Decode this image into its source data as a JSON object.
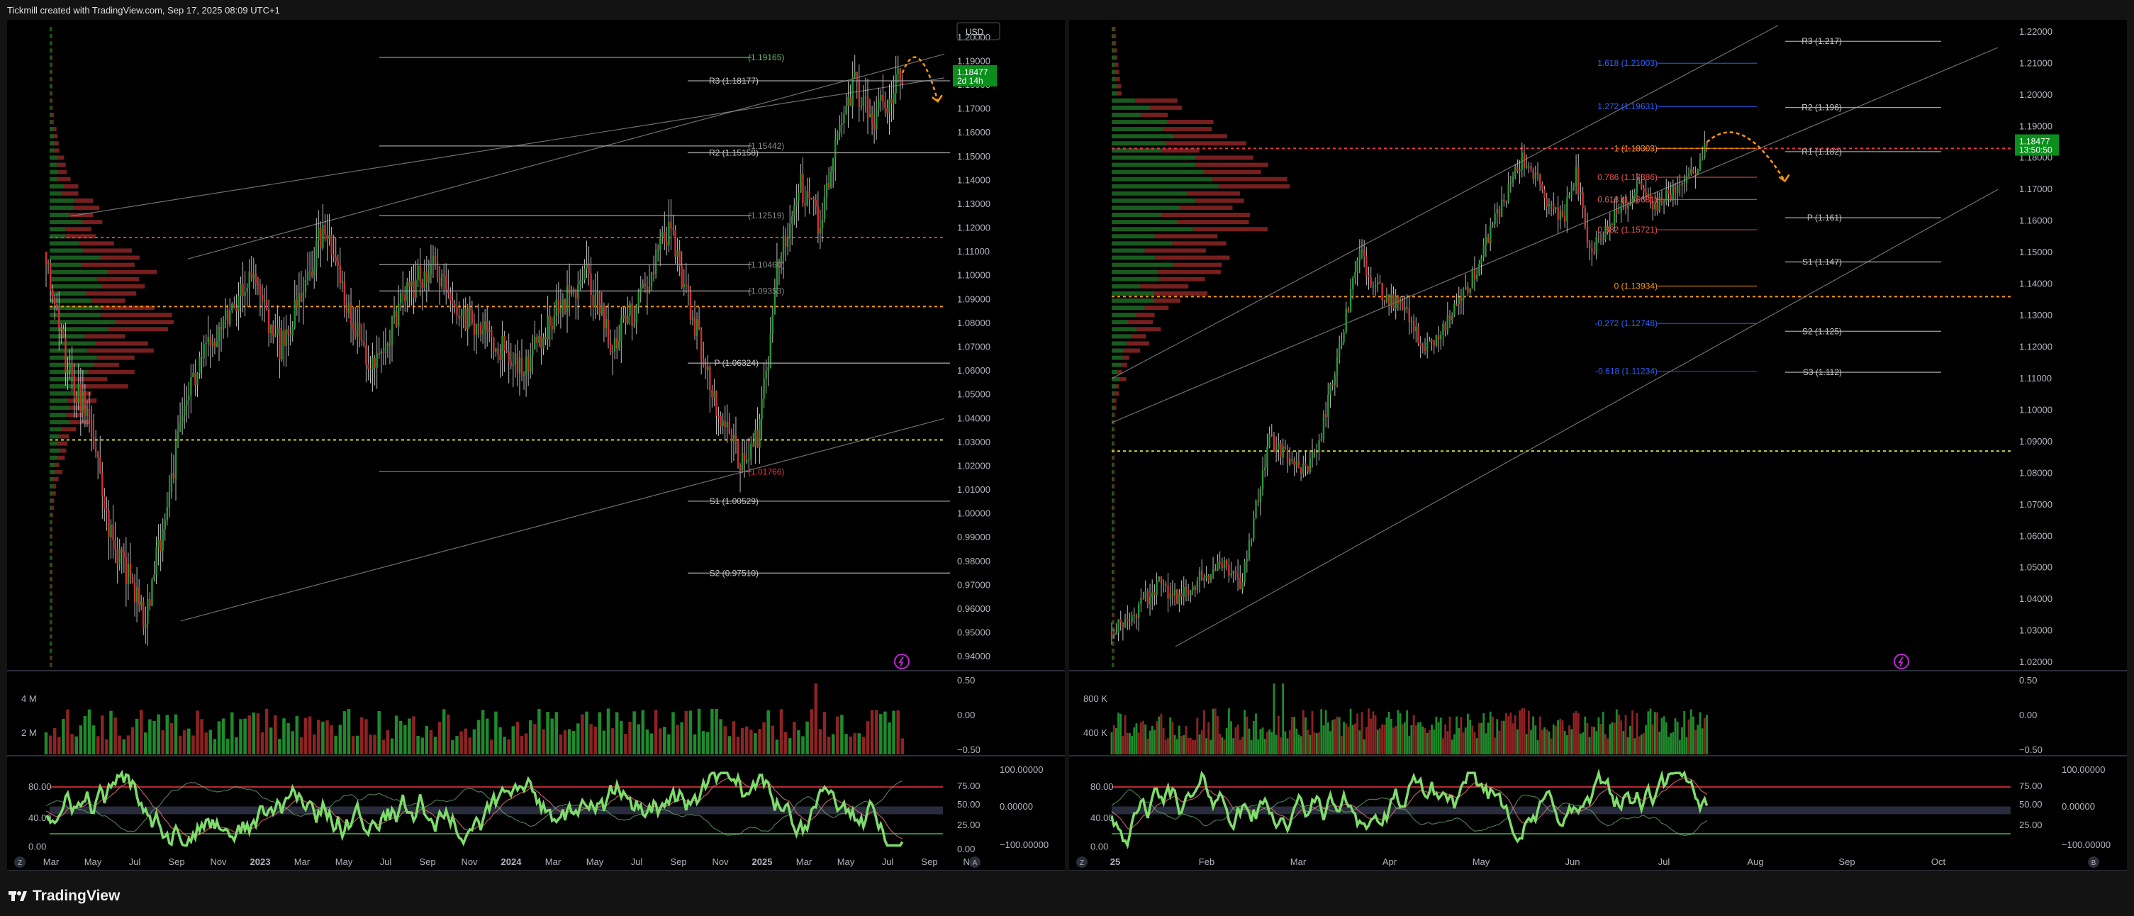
{
  "header": {
    "caption": "Tickmill created with TradingView.com, Sep 17, 2025 08:09 UTC+1"
  },
  "footer": {
    "brand": "TradingView"
  },
  "colors": {
    "bg": "#000000",
    "up": "#1f9a2e",
    "down": "#d32f2f",
    "resistance": "#f23645",
    "support": "#cddc39",
    "poc": "#ff9800",
    "fib": "#2962ff"
  },
  "left_panel": {
    "currency": "USD",
    "price_badge": {
      "price": "1.18477",
      "countdown": "2d 14h"
    },
    "pivots": [
      {
        "label": "R3 (1.18177)",
        "value": 1.18177
      },
      {
        "label": "R2 (1.15158)",
        "value": 1.15158
      },
      {
        "label": "P (1.06324)",
        "value": 1.06324
      },
      {
        "label": "S1 (1.00529)",
        "value": 1.00529
      },
      {
        "label": "S2 (0.97510)",
        "value": 0.9751
      }
    ],
    "levels": [
      {
        "label": "(1.19165)",
        "value": 1.19165,
        "tone": "green"
      },
      {
        "label": "(1.15442)",
        "value": 1.15442,
        "tone": "grey"
      },
      {
        "label": "(1.12519)",
        "value": 1.12519,
        "tone": "grey"
      },
      {
        "label": "(1.10460)",
        "value": 1.1046,
        "tone": "grey"
      },
      {
        "label": "(1.09353)",
        "value": 1.09353,
        "tone": "grey"
      },
      {
        "label": "(1.01766)",
        "value": 1.01766,
        "tone": "red"
      }
    ],
    "volume_axis": [
      "4 M",
      "2 M"
    ],
    "osc_axis": [
      "80.00",
      "40.00",
      "0.00"
    ],
    "right_small_axis": [
      "0.50",
      "0.00",
      "−0.50"
    ],
    "right_osc_axis": [
      "100.00000",
      "75.00",
      "50.00",
      "0.00000",
      "25.00",
      "−100.00000",
      "0.00"
    ],
    "bottom_buttons": [
      "Z",
      "A"
    ]
  },
  "right_panel": {
    "price_badge": {
      "price": "1.18477",
      "countdown": "13:50:50"
    },
    "pivots": [
      {
        "label": "R3 (1.217)",
        "value": 1.217
      },
      {
        "label": "R2 (1.196)",
        "value": 1.196
      },
      {
        "label": "R1 (1.182)",
        "value": 1.182
      },
      {
        "label": "P (1.161)",
        "value": 1.161
      },
      {
        "label": "S1 (1.147)",
        "value": 1.147
      },
      {
        "label": "S2 (1.125)",
        "value": 1.125
      },
      {
        "label": "S3 (1.112)",
        "value": 1.112
      }
    ],
    "fib": [
      {
        "label": "1.618 (1.21003)",
        "value": 1.21003
      },
      {
        "label": "1.272 (1.19631)",
        "value": 1.19631
      },
      {
        "label": "1 (1.18303)",
        "value": 1.18303
      },
      {
        "label": "0.786 (1.17386)",
        "value": 1.17386
      },
      {
        "label": "0.618 (1.16681)",
        "value": 1.16681
      },
      {
        "label": "0.382 (1.15721)",
        "value": 1.15721
      },
      {
        "label": "0 (1.13934)",
        "value": 1.13934
      },
      {
        "label": "-0.272 (1.12748)",
        "value": 1.12748
      },
      {
        "label": "-0.618 (1.11234)",
        "value": 1.11234
      }
    ],
    "volume_axis": [
      "800 K",
      "400 K"
    ],
    "osc_axis": [
      "80.00",
      "40.00",
      "0.00"
    ],
    "right_small_axis": [
      "0.50",
      "0.00",
      "−0.50"
    ],
    "right_osc_axis": [
      "100.00000",
      "75.00",
      "50.00",
      "0.00000",
      "25.00",
      "−100.00000"
    ],
    "bottom_buttons": [
      "Z",
      "B"
    ]
  },
  "chart_data": [
    {
      "type": "candlestick",
      "title": "",
      "x_ticks": [
        "Mar",
        "May",
        "Jul",
        "Sep",
        "Nov",
        "2023",
        "Mar",
        "May",
        "Jul",
        "Sep",
        "Nov",
        "2024",
        "Mar",
        "May",
        "Jul",
        "Sep",
        "Nov",
        "2025",
        "Mar",
        "May",
        "Jul",
        "Sep",
        "Nov"
      ],
      "y_ticks": [
        "1.20000",
        "1.19000",
        "1.18000",
        "1.17000",
        "1.16000",
        "1.15000",
        "1.14000",
        "1.13000",
        "1.12000",
        "1.11000",
        "1.10000",
        "1.09000",
        "1.08000",
        "1.07000",
        "1.06000",
        "1.05000",
        "1.04000",
        "1.03000",
        "1.02000",
        "1.01000",
        "1.00000",
        "0.99000",
        "0.98000",
        "0.97000",
        "0.96000",
        "0.95000",
        "0.94000"
      ],
      "ylim": [
        0.935,
        1.205
      ],
      "series": [
        {
          "name": "",
          "points": [
            [
              0,
              1.11
            ],
            [
              10,
              1.06
            ],
            [
              20,
              1.04
            ],
            [
              30,
              0.99
            ],
            [
              40,
              0.97
            ],
            [
              46,
              0.955
            ],
            [
              55,
              1.0
            ],
            [
              65,
              1.05
            ],
            [
              80,
              1.08
            ],
            [
              95,
              1.1
            ],
            [
              108,
              1.07
            ],
            [
              118,
              1.09
            ],
            [
              128,
              1.12
            ],
            [
              140,
              1.085
            ],
            [
              152,
              1.06
            ],
            [
              165,
              1.09
            ],
            [
              178,
              1.105
            ],
            [
              190,
              1.085
            ],
            [
              205,
              1.075
            ],
            [
              220,
              1.06
            ],
            [
              235,
              1.085
            ],
            [
              250,
              1.1
            ],
            [
              262,
              1.07
            ],
            [
              275,
              1.09
            ],
            [
              288,
              1.12
            ],
            [
              300,
              1.08
            ],
            [
              312,
              1.04
            ],
            [
              322,
              1.02
            ],
            [
              330,
              1.035
            ],
            [
              338,
              1.1
            ],
            [
              348,
              1.14
            ],
            [
              358,
              1.12
            ],
            [
              366,
              1.16
            ],
            [
              374,
              1.18
            ],
            [
              382,
              1.165
            ],
            [
              390,
              1.175
            ],
            [
              396,
              1.185
            ]
          ]
        }
      ],
      "xlim": [
        0,
        420
      ],
      "volume": {
        "ylim": [
          0,
          4.5
        ],
        "unit": "M"
      },
      "oscillator": {
        "ylim": [
          0,
          100
        ],
        "bands": [
          20,
          80
        ]
      }
    },
    {
      "type": "candlestick",
      "title": "",
      "x_ticks": [
        "25",
        "Feb",
        "Mar",
        "Apr",
        "May",
        "Jun",
        "Jul",
        "Aug",
        "Sep",
        "Oct"
      ],
      "y_ticks": [
        "1.22000",
        "1.21000",
        "1.20000",
        "1.19000",
        "1.18000",
        "1.17000",
        "1.16000",
        "1.15000",
        "1.14000",
        "1.13000",
        "1.12000",
        "1.11000",
        "1.10000",
        "1.09000",
        "1.08000",
        "1.07000",
        "1.06000",
        "1.05000",
        "1.04000",
        "1.03000",
        "1.02000"
      ],
      "ylim": [
        1.018,
        1.222
      ],
      "series": [
        {
          "name": "",
          "points": [
            [
              0,
              1.03
            ],
            [
              10,
              1.035
            ],
            [
              20,
              1.045
            ],
            [
              30,
              1.04
            ],
            [
              40,
              1.048
            ],
            [
              50,
              1.05
            ],
            [
              58,
              1.045
            ],
            [
              64,
              1.07
            ],
            [
              70,
              1.09
            ],
            [
              78,
              1.085
            ],
            [
              86,
              1.08
            ],
            [
              92,
              1.09
            ],
            [
              98,
              1.11
            ],
            [
              104,
              1.13
            ],
            [
              110,
              1.15
            ],
            [
              116,
              1.14
            ],
            [
              124,
              1.135
            ],
            [
              132,
              1.13
            ],
            [
              138,
              1.12
            ],
            [
              146,
              1.125
            ],
            [
              154,
              1.135
            ],
            [
              162,
              1.145
            ],
            [
              170,
              1.16
            ],
            [
              176,
              1.17
            ],
            [
              182,
              1.18
            ],
            [
              188,
              1.175
            ],
            [
              194,
              1.165
            ],
            [
              200,
              1.16
            ],
            [
              206,
              1.175
            ],
            [
              212,
              1.15
            ],
            [
              218,
              1.155
            ],
            [
              226,
              1.165
            ],
            [
              234,
              1.17
            ],
            [
              242,
              1.165
            ],
            [
              250,
              1.17
            ],
            [
              258,
              1.175
            ],
            [
              264,
              1.185
            ]
          ]
        }
      ],
      "xlim": [
        0,
        300
      ],
      "volume": {
        "ylim": [
          0,
          900
        ],
        "unit": "K"
      },
      "oscillator": {
        "ylim": [
          0,
          100
        ],
        "bands": [
          20,
          80
        ]
      }
    }
  ]
}
